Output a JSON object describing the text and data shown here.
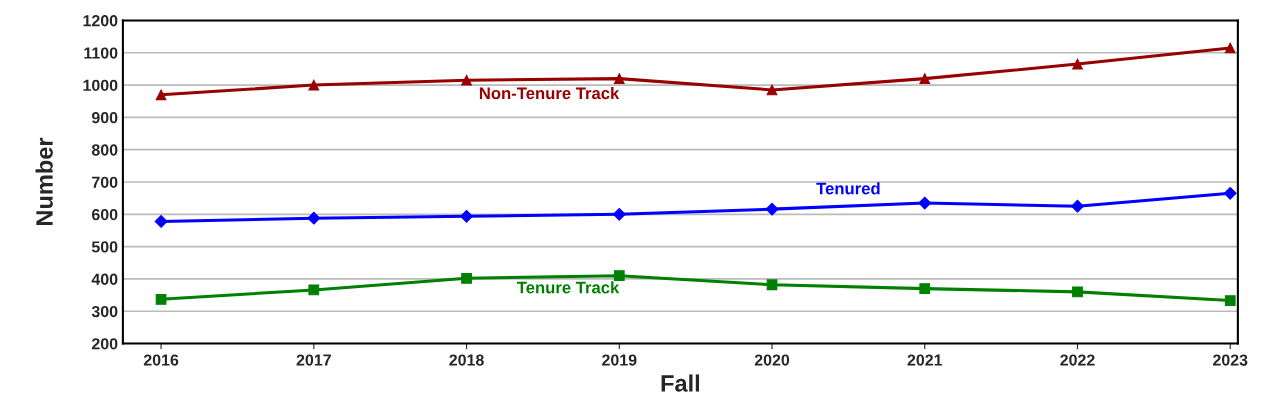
{
  "chart_data": {
    "type": "line",
    "xlabel": "Fall",
    "ylabel": "Number",
    "categories": [
      "2016",
      "2017",
      "2018",
      "2019",
      "2020",
      "2021",
      "2022",
      "2023"
    ],
    "series": [
      {
        "name": "Non-Tenure Track",
        "color": "#990000",
        "marker": "triangle",
        "values": [
          970,
          1000,
          1015,
          1020,
          985,
          1020,
          1065,
          1115
        ]
      },
      {
        "name": "Tenured",
        "color": "#0000ff",
        "marker": "diamond",
        "values": [
          578,
          588,
          594,
          600,
          616,
          635,
          625,
          665
        ]
      },
      {
        "name": "Tenure Track",
        "color": "#008000",
        "marker": "square",
        "values": [
          337,
          366,
          402,
          410,
          382,
          370,
          360,
          333
        ]
      }
    ],
    "ylim": [
      200,
      1200
    ],
    "yticks": [
      200,
      300,
      400,
      500,
      600,
      700,
      800,
      900,
      1000,
      1100,
      1200
    ],
    "grid": "y",
    "legend": false,
    "line_style": "solid"
  }
}
